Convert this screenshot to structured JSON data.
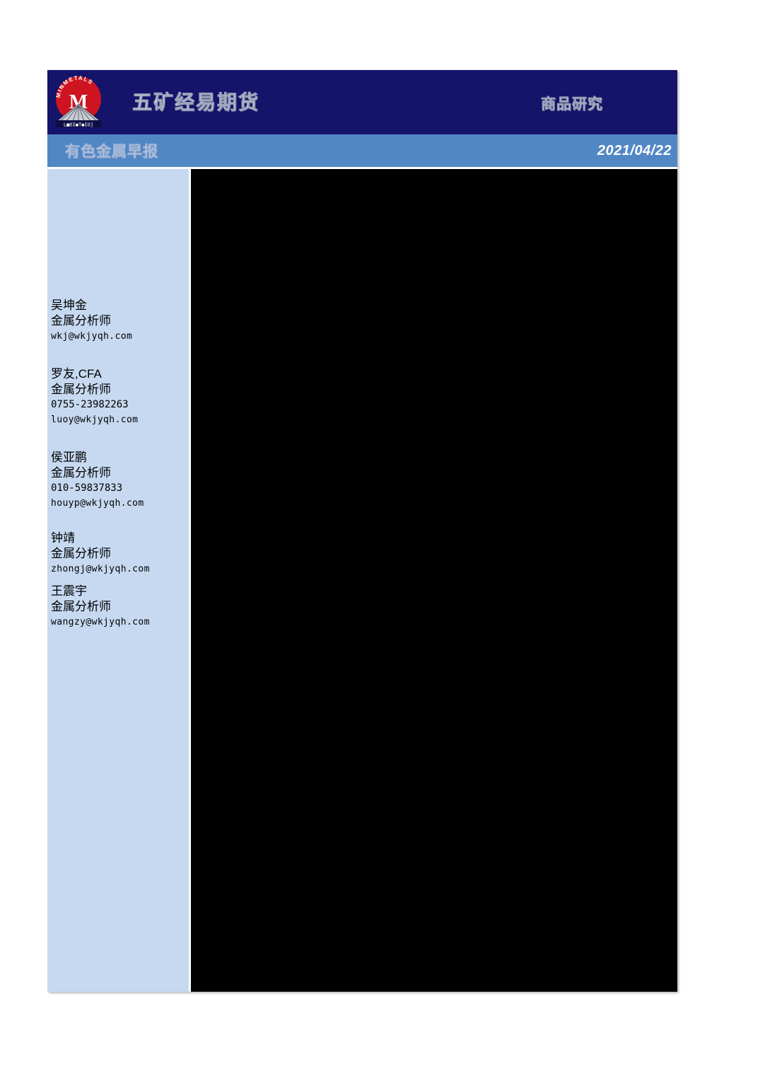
{
  "header": {
    "brand": "五矿经易期货",
    "department": "商品研究",
    "report_title": "有色金属早报",
    "date": "2021/04/22",
    "logo": {
      "arc_text": "MINMETALS",
      "monogram": "M",
      "base_text": "L■OI●T●IO]"
    }
  },
  "colors": {
    "navy": "#14146a",
    "bar_blue": "#5287c5",
    "sidebar_blue": "#c6d9f0",
    "content_black": "#000000",
    "logo_red": "#cf1421",
    "text_white": "#ffffff"
  },
  "sidebar": {
    "analysts": [
      {
        "name": "吴坤金",
        "title": "金属分析师",
        "email": "wkj@wkjyqh.com"
      },
      {
        "name": "罗友,CFA",
        "title": "金属分析师",
        "phone": "0755-23982263",
        "email": "luoy@wkjyqh.com"
      },
      {
        "name": "侯亚鹏",
        "title": "金属分析师",
        "phone": "010-59837833",
        "email": "houyp@wkjyqh.com"
      },
      {
        "name": "钟靖",
        "title": "金属分析师",
        "email": "zhongj@wkjyqh.com"
      },
      {
        "name": "王震宇",
        "title": "金属分析师",
        "email": "wangzy@wkjyqh.com"
      }
    ]
  }
}
